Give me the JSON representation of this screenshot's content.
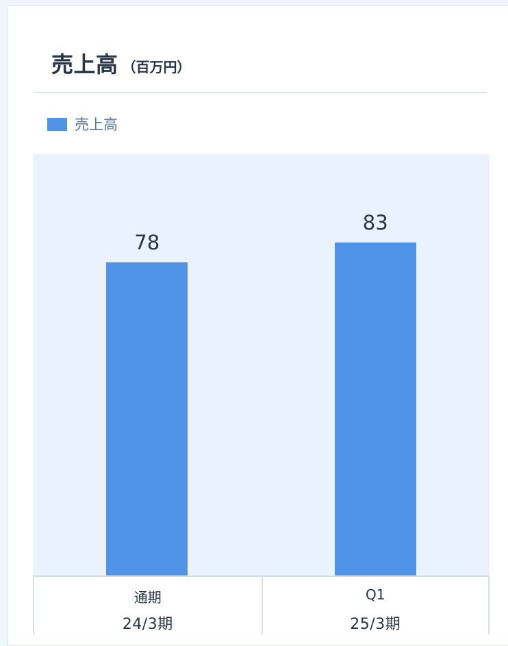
{
  "chart_data": {
    "type": "bar",
    "title": "売上高",
    "unit": "（百万円）",
    "categories": [
      {
        "line1": "通期",
        "line2": "24/3期"
      },
      {
        "line1": "Q1",
        "line2": "25/3期"
      }
    ],
    "series": [
      {
        "name": "売上高",
        "values": [
          78,
          83
        ],
        "color": "#5093e7"
      }
    ],
    "value_labels": [
      "78",
      "83"
    ],
    "ylim": [
      0,
      100
    ],
    "grid": false,
    "legend": "top-left",
    "background": "#eaf2fd"
  }
}
